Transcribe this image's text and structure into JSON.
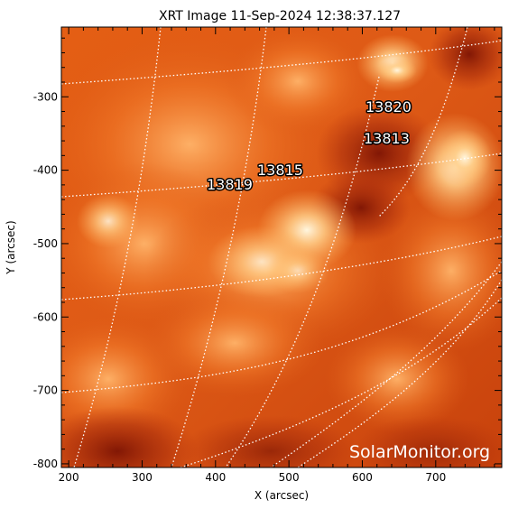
{
  "title": "XRT Image 11-Sep-2024 12:38:37.127",
  "axes": {
    "xlabel": "X (arcsec)",
    "ylabel": "Y (arcsec)",
    "x_ticks": [
      "200",
      "300",
      "400",
      "500",
      "600",
      "700"
    ],
    "y_ticks": [
      "-300",
      "-400",
      "-500",
      "-600",
      "-700",
      "-800"
    ],
    "x_range": [
      190,
      790
    ],
    "y_range": [
      -805,
      -205
    ]
  },
  "regions": [
    {
      "label": "13820",
      "x": 630,
      "y": -320
    },
    {
      "label": "13813",
      "x": 630,
      "y": -370
    },
    {
      "label": "13815",
      "x": 480,
      "y": -400
    },
    {
      "label": "13819",
      "x": 410,
      "y": -420
    }
  ],
  "watermark": "SolarMonitor.org",
  "colors": {
    "sun_base": "#d34a0c",
    "sun_bright": "#ffe1a8",
    "sun_dark": "#7a1405",
    "grid": "#ffffff",
    "frame": "#000000"
  }
}
